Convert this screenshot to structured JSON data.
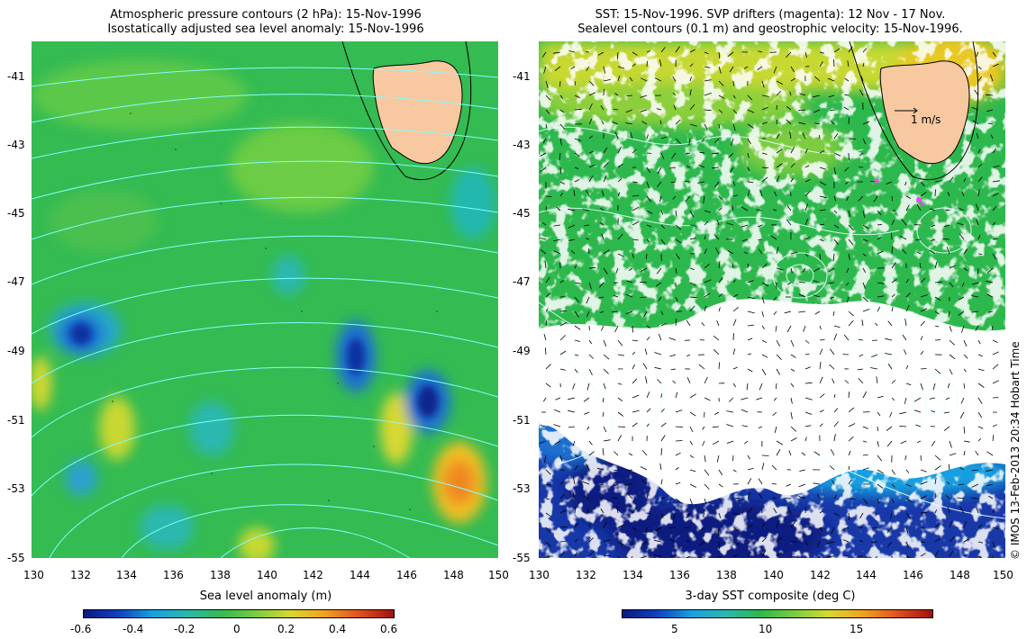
{
  "left_panel": {
    "title_line1": "Atmospheric pressure contours (2 hPa): 15-Nov-1996",
    "title_line2": "Isostatically adjusted sea level anomaly: 15-Nov-1996",
    "y_ticks": [
      "-41",
      "-43",
      "-45",
      "-47",
      "-49",
      "-51",
      "-53",
      "-55"
    ],
    "x_ticks": [
      "130",
      "132",
      "134",
      "136",
      "138",
      "140",
      "142",
      "144",
      "146",
      "148",
      "150"
    ],
    "colorbar_title": "Sea level anomaly (m)",
    "colorbar_ticks": [
      "-0.6",
      "-0.4",
      "-0.2",
      "0",
      "0.2",
      "0.4",
      "0.6"
    ]
  },
  "right_panel": {
    "title_line1": "SST: 15-Nov-1996. SVP drifters (magenta): 12 Nov - 17 Nov.",
    "title_line2": "Sealevel contours (0.1 m) and geostrophic velocity: 15-Nov-1996.",
    "y_ticks": [
      "-41",
      "-43",
      "-45",
      "-47",
      "-49",
      "-51",
      "-53",
      "-55"
    ],
    "x_ticks": [
      "130",
      "132",
      "134",
      "136",
      "138",
      "140",
      "142",
      "144",
      "146",
      "148",
      "150"
    ],
    "velocity_scale_label": "1 m/s",
    "colorbar_title": "3-day SST composite (deg C)",
    "colorbar_ticks": [
      "5",
      "10",
      "15"
    ]
  },
  "credit": "© IMOS 13-Feb-2013 20:34 Hobart Time",
  "colors": {
    "land": "#f8c8a0",
    "background_green": "#2db84d",
    "cloud_white": "#ffffff",
    "contour_cyan": "#7fffff"
  }
}
